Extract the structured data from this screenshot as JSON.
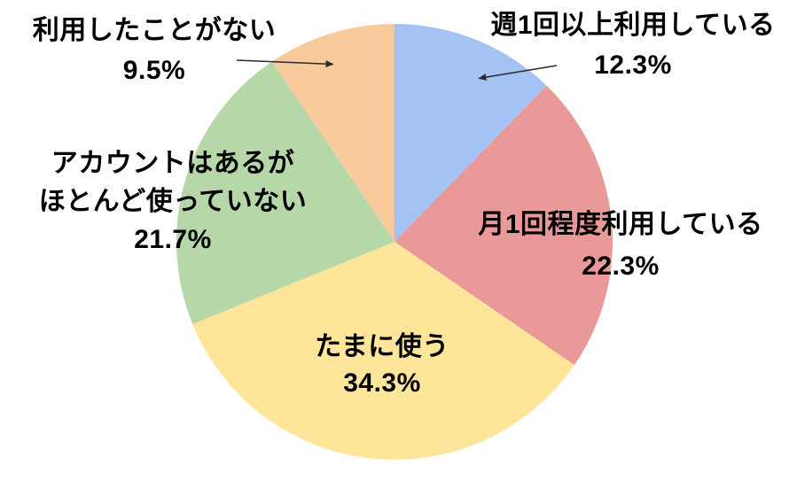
{
  "chart_data": {
    "type": "pie",
    "unit": "%",
    "direction": "clockwise",
    "start_angle_deg": 0,
    "legend_position": "none",
    "labels_position": "outside-overlay",
    "background_color": "#ffffff",
    "label_text_color": "#000000",
    "leader_arrow_color": "#2a2a2a",
    "slices": [
      {
        "name": "weekly",
        "label": "週1回以上利用している",
        "value": 12.3,
        "display": "12.3%",
        "color": "#a4c2f4"
      },
      {
        "name": "monthly",
        "label": "月1回程度利用している",
        "value": 22.3,
        "display": "22.3%",
        "color": "#ea9999"
      },
      {
        "name": "sometimes",
        "label": "たまに使う",
        "value": 34.3,
        "display": "34.3%",
        "color": "#ffe599"
      },
      {
        "name": "account-unused",
        "label": "アカウントはあるがほとんど使っていない",
        "label_lines": [
          "アカウントはあるが",
          "ほとんど使っていない"
        ],
        "value": 21.7,
        "display": "21.7%",
        "color": "#b6d7a8"
      },
      {
        "name": "never",
        "label": "利用したことがない",
        "value": 9.5,
        "display": "9.5%",
        "color": "#f9cb9c"
      }
    ]
  }
}
